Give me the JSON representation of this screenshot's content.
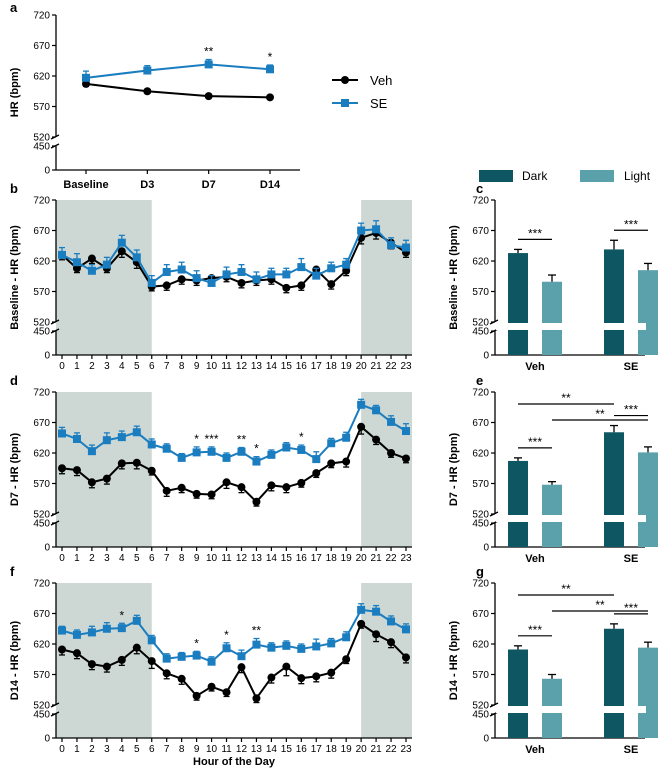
{
  "colors": {
    "veh": "#000000",
    "se": "#1a7dc0",
    "dark": "#0f5663",
    "light": "#5aa1ab",
    "shade": "#cdd8d5"
  },
  "legend": {
    "veh": "Veh",
    "se": "SE",
    "dark": "Dark",
    "light": "Light"
  },
  "chart_data": [
    {
      "id": "a",
      "panel_label": "a",
      "type": "line",
      "ylabel": "HR (bpm)",
      "ylim": [
        0,
        720
      ],
      "axis_break": [
        450,
        520
      ],
      "yticks": [
        0,
        450,
        520,
        570,
        620,
        670,
        720
      ],
      "categories": [
        "Baseline",
        "D3",
        "D7",
        "D14"
      ],
      "series": [
        {
          "name": "Veh",
          "values": [
            607,
            595,
            587,
            585
          ],
          "errors": [
            4,
            3,
            3,
            3
          ]
        },
        {
          "name": "SE",
          "values": [
            617,
            629,
            639,
            631
          ],
          "errors": [
            11,
            8,
            8,
            7
          ]
        }
      ],
      "annotations": [
        "",
        "",
        "**",
        "*"
      ]
    },
    {
      "id": "b",
      "panel_label": "b",
      "type": "line",
      "ylabel": "Baseline - HR (bpm)",
      "xlabel": "",
      "ylim": [
        0,
        720
      ],
      "axis_break": [
        450,
        520
      ],
      "yticks": [
        0,
        450,
        520,
        570,
        620,
        670,
        720
      ],
      "x": [
        0,
        1,
        2,
        3,
        4,
        5,
        6,
        7,
        8,
        9,
        10,
        11,
        12,
        13,
        14,
        15,
        16,
        17,
        18,
        19,
        20,
        21,
        22,
        23
      ],
      "shaded_hours": [
        [
          0,
          6
        ],
        [
          20,
          23
        ]
      ],
      "series": [
        {
          "name": "Veh",
          "values": [
            630,
            608,
            624,
            608,
            636,
            618,
            578,
            580,
            590,
            588,
            592,
            594,
            584,
            588,
            590,
            576,
            580,
            606,
            582,
            604,
            658,
            666,
            650,
            634
          ],
          "errors": [
            8,
            7,
            8,
            7,
            10,
            10,
            7,
            8,
            8,
            8,
            8,
            8,
            8,
            8,
            8,
            8,
            8,
            10,
            8,
            8,
            10,
            10,
            10,
            8
          ]
        },
        {
          "name": "SE",
          "values": [
            630,
            618,
            604,
            614,
            650,
            626,
            584,
            602,
            606,
            592,
            584,
            598,
            602,
            590,
            598,
            598,
            610,
            596,
            608,
            614,
            670,
            672,
            646,
            642
          ],
          "errors": [
            12,
            14,
            10,
            12,
            12,
            12,
            12,
            12,
            12,
            12,
            12,
            12,
            12,
            12,
            10,
            10,
            14,
            12,
            10,
            10,
            12,
            14,
            12,
            12
          ]
        }
      ],
      "annotations": []
    },
    {
      "id": "c",
      "panel_label": "c",
      "type": "bar",
      "ylabel": "Baseline - HR (bpm)",
      "ylim": [
        0,
        720
      ],
      "axis_break": [
        450,
        520
      ],
      "yticks": [
        0,
        450,
        520,
        570,
        620,
        670,
        720
      ],
      "categories": [
        "Veh",
        "SE"
      ],
      "series": [
        {
          "name": "Dark",
          "values": [
            633,
            639
          ],
          "errors": [
            6,
            15
          ]
        },
        {
          "name": "Light",
          "values": [
            586,
            605
          ],
          "errors": [
            11,
            11
          ]
        }
      ],
      "brackets": [
        {
          "from": "Veh-Dark",
          "to": "Veh-Light",
          "level": 0,
          "text": "***"
        },
        {
          "from": "SE-Dark",
          "to": "SE-Light",
          "level": 0,
          "text": "***"
        }
      ]
    },
    {
      "id": "d",
      "panel_label": "d",
      "type": "line",
      "ylabel": "D7 - HR (bpm)",
      "xlabel": "",
      "ylim": [
        0,
        720
      ],
      "axis_break": [
        450,
        520
      ],
      "yticks": [
        0,
        450,
        520,
        570,
        620,
        670,
        720
      ],
      "x": [
        0,
        1,
        2,
        3,
        4,
        5,
        6,
        7,
        8,
        9,
        10,
        11,
        12,
        13,
        14,
        15,
        16,
        17,
        18,
        19,
        20,
        21,
        22,
        23
      ],
      "shaded_hours": [
        [
          0,
          6
        ],
        [
          20,
          23
        ]
      ],
      "series": [
        {
          "name": "Veh",
          "values": [
            595,
            592,
            572,
            578,
            603,
            604,
            591,
            558,
            563,
            553,
            552,
            572,
            564,
            540,
            567,
            564,
            571,
            587,
            603,
            606,
            663,
            642,
            620,
            611
          ],
          "errors": [
            9,
            9,
            9,
            9,
            9,
            10,
            7,
            9,
            8,
            7,
            7,
            10,
            9,
            7,
            9,
            9,
            7,
            7,
            7,
            9,
            12,
            8,
            7,
            7
          ]
        },
        {
          "name": "SE",
          "values": [
            652,
            643,
            623,
            641,
            646,
            654,
            634,
            627,
            612,
            621,
            622,
            612,
            622,
            606,
            617,
            629,
            625,
            610,
            636,
            645,
            699,
            690,
            671,
            656
          ],
          "errors": [
            10,
            10,
            10,
            12,
            10,
            10,
            9,
            8,
            7,
            9,
            8,
            8,
            7,
            8,
            8,
            8,
            8,
            12,
            8,
            9,
            9,
            8,
            10,
            12
          ]
        }
      ],
      "annotations": [
        "",
        "",
        "",
        "",
        "",
        "",
        "",
        "",
        "",
        "*",
        "***",
        "",
        "**",
        "*",
        "",
        "",
        "*",
        "",
        "",
        "",
        "",
        "",
        "",
        ""
      ]
    },
    {
      "id": "e",
      "panel_label": "e",
      "type": "bar",
      "ylabel": "D7 - HR (bpm)",
      "ylim": [
        0,
        720
      ],
      "axis_break": [
        450,
        520
      ],
      "yticks": [
        0,
        450,
        520,
        570,
        620,
        670,
        720
      ],
      "categories": [
        "Veh",
        "SE"
      ],
      "series": [
        {
          "name": "Dark",
          "values": [
            607,
            654
          ],
          "errors": [
            5,
            11
          ]
        },
        {
          "name": "Light",
          "values": [
            568,
            621
          ],
          "errors": [
            5,
            9
          ]
        }
      ],
      "brackets": [
        {
          "from": "Veh-Dark",
          "to": "Veh-Light",
          "level": 0,
          "text": "***"
        },
        {
          "from": "SE-Dark",
          "to": "SE-Light",
          "level": 0,
          "text": "***"
        },
        {
          "from": "Veh-Light",
          "to": "SE-Light",
          "level": 1,
          "text": "**"
        },
        {
          "from": "Veh-Dark",
          "to": "SE-Dark",
          "level": 2,
          "text": "**"
        }
      ]
    },
    {
      "id": "f",
      "panel_label": "f",
      "type": "line",
      "ylabel": "D14 - HR (bpm)",
      "xlabel": "Hour of the Day",
      "ylim": [
        0,
        720
      ],
      "axis_break": [
        450,
        520
      ],
      "yticks": [
        0,
        450,
        520,
        570,
        620,
        670,
        720
      ],
      "x": [
        0,
        1,
        2,
        3,
        4,
        5,
        6,
        7,
        8,
        9,
        10,
        11,
        12,
        13,
        14,
        15,
        16,
        17,
        18,
        19,
        20,
        21,
        22,
        23
      ],
      "shaded_hours": [
        [
          0,
          6
        ],
        [
          20,
          23
        ]
      ],
      "series": [
        {
          "name": "Veh",
          "values": [
            611,
            605,
            587,
            583,
            594,
            614,
            592,
            572,
            563,
            535,
            550,
            541,
            582,
            531,
            565,
            583,
            564,
            567,
            573,
            595,
            653,
            636,
            623,
            598
          ],
          "errors": [
            9,
            9,
            9,
            9,
            9,
            10,
            12,
            9,
            9,
            7,
            7,
            7,
            9,
            7,
            9,
            15,
            9,
            9,
            9,
            7,
            7,
            12,
            9,
            9
          ]
        },
        {
          "name": "SE",
          "values": [
            642,
            635,
            639,
            645,
            646,
            658,
            626,
            596,
            599,
            601,
            591,
            613,
            600,
            619,
            614,
            617,
            612,
            616,
            621,
            631,
            676,
            673,
            657,
            644
          ],
          "errors": [
            7,
            8,
            10,
            10,
            8,
            9,
            8,
            8,
            7,
            7,
            8,
            9,
            10,
            10,
            8,
            8,
            8,
            12,
            8,
            9,
            10,
            10,
            9,
            9
          ]
        }
      ],
      "annotations": [
        "",
        "",
        "",
        "",
        "*",
        "",
        "",
        "",
        "",
        "*",
        "",
        "*",
        "",
        "**",
        "",
        "",
        "",
        "",
        "",
        "",
        "",
        "",
        "",
        ""
      ]
    },
    {
      "id": "g",
      "panel_label": "g",
      "type": "bar",
      "ylabel": "D14 - HR (bpm)",
      "ylim": [
        0,
        720
      ],
      "axis_break": [
        450,
        520
      ],
      "yticks": [
        0,
        450,
        520,
        570,
        620,
        670,
        720
      ],
      "categories": [
        "Veh",
        "SE"
      ],
      "series": [
        {
          "name": "Dark",
          "values": [
            611,
            645
          ],
          "errors": [
            6,
            8
          ]
        },
        {
          "name": "Light",
          "values": [
            563,
            614
          ],
          "errors": [
            7,
            9
          ]
        }
      ],
      "brackets": [
        {
          "from": "Veh-Dark",
          "to": "Veh-Light",
          "level": 0,
          "text": "***"
        },
        {
          "from": "SE-Dark",
          "to": "SE-Light",
          "level": 0,
          "text": "***"
        },
        {
          "from": "Veh-Light",
          "to": "SE-Light",
          "level": 1,
          "text": "**"
        },
        {
          "from": "Veh-Dark",
          "to": "SE-Dark",
          "level": 2,
          "text": "**"
        }
      ]
    }
  ]
}
